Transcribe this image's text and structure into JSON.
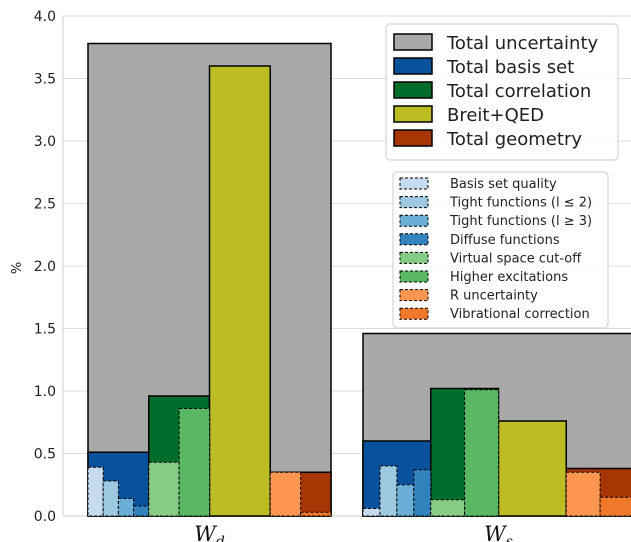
{
  "chart_data": {
    "type": "bar",
    "title": "",
    "xlabel": "",
    "ylabel": "%",
    "ylim": [
      0,
      4.0
    ],
    "yticks": [
      "0.0",
      "0.5",
      "1.0",
      "1.5",
      "2.0",
      "2.5",
      "3.0",
      "3.5",
      "4.0"
    ],
    "grid": "horizontal",
    "legend_main_position": "top-right",
    "legend_detail_position": "right",
    "categories": [
      {
        "label": "W",
        "sub": "d"
      },
      {
        "label": "W",
        "sub": "s"
      }
    ],
    "main_series": [
      {
        "name": "Total uncertainty",
        "color": "#a9a9a9",
        "values": [
          3.78,
          1.46
        ]
      },
      {
        "name": "Total basis set",
        "color": "#08519c",
        "values": [
          0.51,
          0.6
        ]
      },
      {
        "name": "Total correlation",
        "color": "#006d2c",
        "values": [
          0.96,
          1.02
        ]
      },
      {
        "name": "Breit+QED",
        "color": "#bcbd22",
        "values": [
          3.6,
          0.76
        ]
      },
      {
        "name": "Total geometry",
        "color": "#a63603",
        "values": [
          0.35,
          0.38
        ]
      }
    ],
    "detail_series": [
      {
        "name": "Basis set quality",
        "color": "#c6dbef",
        "group": "Total basis set",
        "values": [
          0.39,
          0.06
        ]
      },
      {
        "name": "Tight functions (l ≤ 2)",
        "color": "#9ecae1",
        "group": "Total basis set",
        "values": [
          0.28,
          0.4
        ]
      },
      {
        "name": "Tight functions (l ≥ 3)",
        "color": "#6baed6",
        "group": "Total basis set",
        "values": [
          0.14,
          0.25
        ]
      },
      {
        "name": "Diffuse functions",
        "color": "#3182bd",
        "group": "Total basis set",
        "values": [
          0.08,
          0.37
        ]
      },
      {
        "name": "Virtual space cut-off",
        "color": "#86cc86",
        "group": "Total correlation",
        "values": [
          0.43,
          0.13
        ]
      },
      {
        "name": "Higher excitations",
        "color": "#5ab864",
        "group": "Total correlation",
        "values": [
          0.86,
          1.01
        ]
      },
      {
        "name": "R uncertainty",
        "color": "#fd9650",
        "group": "Total geometry",
        "values": [
          0.35,
          0.35
        ]
      },
      {
        "name": "Vibrational correction",
        "color": "#f0782a",
        "group": "Total geometry",
        "values": [
          0.03,
          0.15
        ]
      }
    ]
  }
}
